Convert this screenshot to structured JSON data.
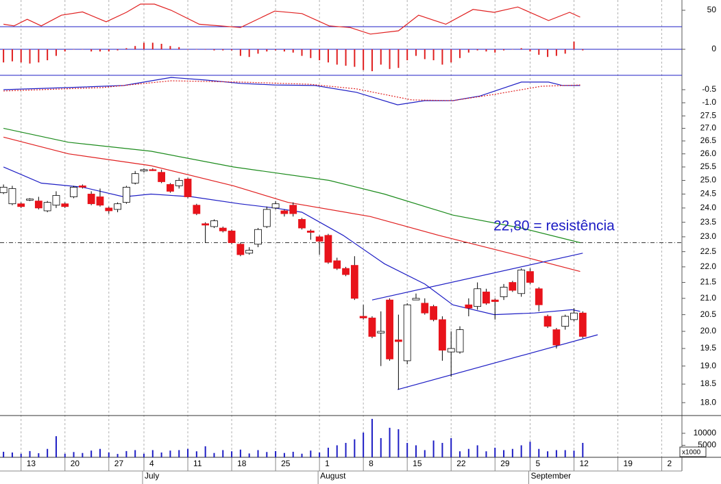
{
  "chart_data": [
    {
      "type": "line",
      "xlim": [
        -0.4,
        77.3
      ],
      "ylim": [
        12.5,
        62.5
      ],
      "yticks": [
        50
      ],
      "hline": 30,
      "hline_color": "#1c1cc4",
      "series": [
        {
          "color": "#e01e1e",
          "x": [
            0,
            1.2,
            2.7,
            4.3,
            6.6,
            9,
            11.7,
            14,
            15.6,
            17.2,
            19.1,
            22.3,
            27,
            30.9,
            34,
            37.1,
            39.5,
            41.8,
            45,
            47.3,
            50.4,
            53.5,
            55.9,
            58.6,
            62.1,
            64.5,
            65.7
          ],
          "values": [
            33,
            31,
            39,
            31,
            44,
            48,
            36,
            47.5,
            57.5,
            57.5,
            50,
            33,
            29,
            49,
            46,
            31,
            29,
            21,
            25,
            44,
            33,
            51,
            47.5,
            54,
            37.5,
            47.5,
            41.7
          ]
        }
      ]
    },
    {
      "type": "bar",
      "xlim": [
        -0.4,
        77.3
      ],
      "ylim": [
        -1,
        1
      ],
      "yticks": [
        0
      ],
      "grid": true,
      "color": "#e01e1e",
      "values": [
        -0.6,
        -0.55,
        -0.6,
        -0.65,
        -0.6,
        -0.5,
        -0.3,
        -0.1,
        0,
        0,
        -0.1,
        -0.1,
        -0.1,
        -0.05,
        0.05,
        0.15,
        0.3,
        0.3,
        0.25,
        0.15,
        0.1,
        0,
        0,
        -0.02,
        -0.05,
        -0.05,
        -0.05,
        -0.3,
        -0.35,
        -0.2,
        -0.1,
        -0.05,
        -0.1,
        -0.15,
        -0.3,
        -0.4,
        -0.5,
        -0.6,
        -0.7,
        -0.75,
        -0.8,
        -0.95,
        -1.0,
        -0.7,
        -0.9,
        -0.85,
        -0.5,
        -0.3,
        -0.45,
        -0.5,
        -0.7,
        -0.6,
        -0.4,
        -0.15,
        -0.05,
        -0.1,
        -0.15,
        -0.05,
        0,
        0.05,
        -0.1,
        -0.25,
        -0.35,
        -0.3,
        -0.2,
        0.35,
        -0.05
      ]
    },
    {
      "type": "line",
      "xlim": [
        -0.4,
        77.3
      ],
      "ylim": [
        -1.26,
        0.05
      ],
      "yticks": [
        -0.5,
        {
          "value": -1,
          "label": "-1.0"
        }
      ],
      "series": [
        {
          "color": "#1c1cc4",
          "x": [
            0,
            7.4,
            13.7,
            19.1,
            23,
            27,
            30.9,
            35.5,
            40.2,
            44.9,
            48,
            51.2,
            54.3,
            59,
            62.1,
            63.7,
            65.7
          ],
          "values": [
            -0.5,
            -0.42,
            -0.34,
            -0.03,
            -0.13,
            -0.26,
            -0.32,
            -0.34,
            -0.6,
            -1.08,
            -0.92,
            -0.92,
            -0.74,
            -0.21,
            -0.21,
            -0.34,
            -0.34
          ]
        },
        {
          "color": "#e01e1e",
          "style": "dotted",
          "x": [
            0,
            11.3,
            19.1,
            27,
            34.8,
            40.2,
            46.5,
            51.2,
            55.9,
            61.3,
            65.7
          ],
          "values": [
            -0.55,
            -0.42,
            -0.16,
            -0.21,
            -0.29,
            -0.47,
            -0.89,
            -0.92,
            -0.68,
            -0.37,
            -0.32
          ]
        }
      ]
    },
    {
      "type": "candlestick",
      "xlim": [
        -0.4,
        77.3
      ],
      "ylim": [
        17.66,
        27.76
      ],
      "log_scale": true,
      "yticks": [
        {
          "value": 18,
          "label": "18.0"
        },
        18.5,
        {
          "value": 19,
          "label": "19.0"
        },
        19.5,
        {
          "value": 20,
          "label": "20.0"
        },
        20.5,
        {
          "value": 21,
          "label": "21.0"
        },
        21.5,
        {
          "value": 22,
          "label": "22.0"
        },
        22.5,
        {
          "value": 23,
          "label": "23.0"
        },
        23.5,
        {
          "value": 24,
          "label": "24.0"
        },
        24.5,
        {
          "value": 25,
          "label": "25.0"
        },
        25.5,
        {
          "value": 26,
          "label": "26.0"
        },
        26.5,
        {
          "value": 27,
          "label": "27.0"
        },
        27.5
      ],
      "up_color": "#ffffff",
      "down_color": "#e8131b",
      "open": [
        24.55,
        24.15,
        24.15,
        24.28,
        24.25,
        23.9,
        24.1,
        24.15,
        24.4,
        24.8,
        24.5,
        24.4,
        24.0,
        23.95,
        24.2,
        24.9,
        25.35,
        25.4,
        25.3,
        24.85,
        24.8,
        25.05,
        24.1,
        23.45,
        23.35,
        23.3,
        23.2,
        22.75,
        22.45,
        22.75,
        23.35,
        24.0,
        23.9,
        24.1,
        23.6,
        23.2,
        23.0,
        23.05,
        22.2,
        21.95,
        22.05,
        20.45,
        20.4,
        19.95,
        20.95,
        19.75,
        19.15,
        20.95,
        20.85,
        20.75,
        20.35,
        19.4,
        19.4,
        20.8,
        20.75,
        21.2,
        20.95,
        21.05,
        21.5,
        21.15,
        21.85,
        21.3,
        20.45,
        20.05,
        20.15,
        20.35,
        20.55
      ],
      "high": [
        24.85,
        24.8,
        24.2,
        24.35,
        24.4,
        24.25,
        24.6,
        24.2,
        24.8,
        24.85,
        24.6,
        24.7,
        24.05,
        24.2,
        24.8,
        25.35,
        25.45,
        25.45,
        25.4,
        24.9,
        25.1,
        25.1,
        24.15,
        23.5,
        23.6,
        23.35,
        23.25,
        22.8,
        22.65,
        23.3,
        24.05,
        24.25,
        23.95,
        24.2,
        23.65,
        23.25,
        23.05,
        23.1,
        22.3,
        22.0,
        22.35,
        20.8,
        20.45,
        20.6,
        21.0,
        20.5,
        20.85,
        21.15,
        21.0,
        20.8,
        20.45,
        20.0,
        20.15,
        21.0,
        21.5,
        21.3,
        21.0,
        21.45,
        21.55,
        21.95,
        21.95,
        21.35,
        20.5,
        20.1,
        20.5,
        20.7,
        20.6
      ],
      "low": [
        24.5,
        24.1,
        24.0,
        24.25,
        23.95,
        23.85,
        24.0,
        24.0,
        24.35,
        24.7,
        24.1,
        24.05,
        23.8,
        23.85,
        24.15,
        24.85,
        25.3,
        25.35,
        24.9,
        24.55,
        24.7,
        24.35,
        23.75,
        22.8,
        23.3,
        23.15,
        22.75,
        22.35,
        22.4,
        22.65,
        23.3,
        23.95,
        23.7,
        23.7,
        23.25,
        22.9,
        22.4,
        22.1,
        21.9,
        21.7,
        20.95,
        20.35,
        19.8,
        19.0,
        19.15,
        18.35,
        19.05,
        20.95,
        20.5,
        20.3,
        19.15,
        18.7,
        19.35,
        20.45,
        20.65,
        20.8,
        20.35,
        20.95,
        21.2,
        21.05,
        21.45,
        20.6,
        20.1,
        19.5,
        20.05,
        20.3,
        19.8
      ],
      "close": [
        24.75,
        24.7,
        24.05,
        24.32,
        24.0,
        24.2,
        24.45,
        24.05,
        24.75,
        24.75,
        24.15,
        24.1,
        23.9,
        24.15,
        24.75,
        25.25,
        25.4,
        25.38,
        24.95,
        24.6,
        25.0,
        24.4,
        23.8,
        23.4,
        23.55,
        23.2,
        22.8,
        22.4,
        22.55,
        23.25,
        23.95,
        24.15,
        23.8,
        23.8,
        23.3,
        23.15,
        22.85,
        22.15,
        21.95,
        21.75,
        21.0,
        20.4,
        19.85,
        20.0,
        19.2,
        19.7,
        20.8,
        21.0,
        20.55,
        20.35,
        19.45,
        19.5,
        20.05,
        20.7,
        21.3,
        20.85,
        20.9,
        21.35,
        21.25,
        21.9,
        21.5,
        20.8,
        20.15,
        19.6,
        20.45,
        20.55,
        19.85
      ],
      "series": [
        {
          "color": "#1a8a1a",
          "x": [
            0,
            7.4,
            16.8,
            26.2,
            37.1,
            43.4,
            51.2,
            59,
            65.7
          ],
          "values": [
            27.0,
            26.45,
            26.1,
            25.5,
            25.0,
            24.5,
            23.75,
            23.3,
            22.8
          ]
        },
        {
          "color": "#e01e1e",
          "x": [
            0,
            7.4,
            16.8,
            26.2,
            32.4,
            41.8,
            49.6,
            59,
            65.7
          ],
          "values": [
            26.65,
            26.0,
            25.55,
            24.8,
            24.2,
            23.7,
            23.05,
            22.35,
            21.85
          ]
        },
        {
          "color": "#1c1cc4",
          "x": [
            0,
            4.3,
            9,
            13.7,
            16.8,
            21.5,
            26.9,
            30.9,
            34,
            38.7,
            43.4,
            48,
            51.2,
            55.9,
            60.5,
            64.8,
            65.7
          ],
          "values": [
            25.5,
            24.9,
            24.75,
            24.4,
            24.5,
            24.4,
            24.15,
            24.0,
            23.85,
            23.05,
            22.1,
            21.45,
            20.8,
            20.5,
            20.55,
            20.65,
            20.6
          ]
        }
      ],
      "trendlines": [
        {
          "color": "#1c1cc4",
          "x": [
            42,
            66
          ],
          "values": [
            20.95,
            22.45
          ]
        },
        {
          "color": "#1c1cc4",
          "x": [
            44.9,
            67.7
          ],
          "values": [
            18.35,
            19.9
          ]
        }
      ],
      "hline": 22.8,
      "annotation": "22,80 = resistência"
    },
    {
      "type": "bar",
      "xlim": [
        -0.4,
        77.3
      ],
      "ylim": [
        0,
        17400
      ],
      "yticks": [
        10000,
        5000
      ],
      "color": "#1c1cc4",
      "unit_label": "x1000",
      "values": [
        2300,
        2000,
        1500,
        2600,
        1700,
        3500,
        8800,
        1500,
        2200,
        1800,
        2800,
        3500,
        2000,
        1400,
        2600,
        3000,
        1500,
        3000,
        2000,
        2800,
        3000,
        3500,
        2500,
        4600,
        1800,
        3000,
        2500,
        3200,
        1600,
        3000,
        2200,
        2600,
        1800,
        2300,
        1500,
        2800,
        2000,
        4000,
        5000,
        6000,
        7500,
        10300,
        16000,
        8000,
        12300,
        11700,
        6000,
        5000,
        3000,
        7000,
        6000,
        8000,
        2500,
        3500,
        5000,
        2500,
        4000,
        3000,
        3500,
        5000,
        6500,
        3500,
        2500,
        3000,
        3000,
        2800,
        6000
      ],
      "grid": false,
      "xgrid": true,
      "xticks": [
        {
          "value": 2,
          "label": "13"
        },
        {
          "value": 7,
          "label": "20"
        },
        {
          "value": 12,
          "label": "27"
        },
        {
          "value": 16,
          "label": "4"
        },
        {
          "value": 21,
          "label": "11"
        },
        {
          "value": 26,
          "label": "18"
        },
        {
          "value": 31,
          "label": "25"
        },
        {
          "value": 36,
          "label": "1"
        },
        {
          "value": 41,
          "label": "8"
        },
        {
          "value": 46,
          "label": "15"
        },
        {
          "value": 51,
          "label": "22"
        },
        {
          "value": 56,
          "label": "29"
        },
        {
          "value": 60,
          "label": "5"
        },
        {
          "value": 65,
          "label": "12"
        },
        {
          "value": 70,
          "label": "19"
        },
        {
          "value": 75,
          "label": "2"
        }
      ],
      "month_labels": [
        {
          "value": 16,
          "label": "July"
        },
        {
          "value": 36,
          "label": "August"
        },
        {
          "value": 60,
          "label": "September"
        }
      ]
    }
  ]
}
